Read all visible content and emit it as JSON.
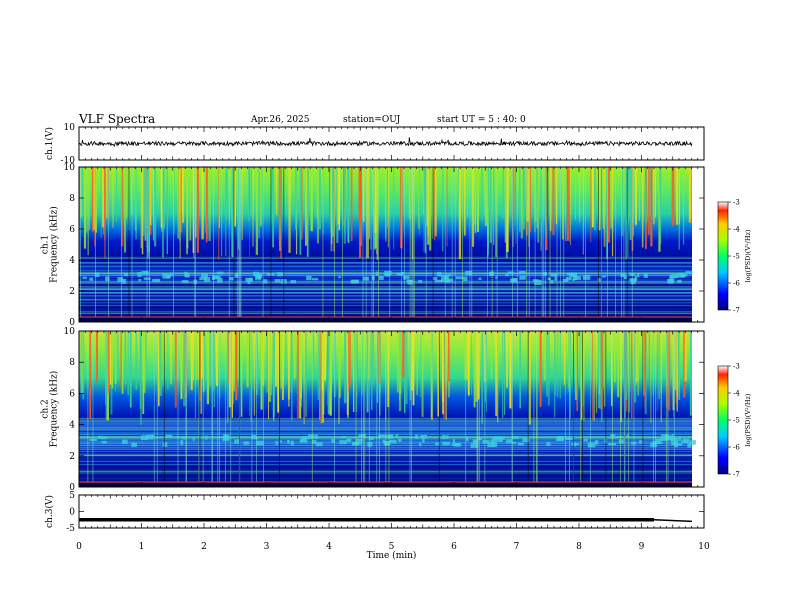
{
  "header": {
    "title": "VLF Spectra",
    "date": "Apr.26, 2025",
    "station": "station=OUJ",
    "start": "start  UT =   5 : 40: 0"
  },
  "chart_data": [
    {
      "type": "line",
      "id": "ch1-waveform",
      "ylabel": "ch.1(V)",
      "ylim": [
        -10,
        10
      ],
      "yticks": [
        "10",
        "-10"
      ],
      "xlim": [
        0,
        10
      ],
      "description_values": {
        "baseline": 0,
        "noise_amplitude": 1.2
      }
    },
    {
      "type": "heatmap",
      "id": "ch1-spectrogram",
      "ylabel": "ch.1\nFrequency (kHz)",
      "ylim": [
        0,
        10
      ],
      "yticks": [
        "0",
        "2",
        "4",
        "6",
        "8",
        "10"
      ],
      "xlim": [
        0,
        10
      ],
      "colorbar": {
        "label": "log(PSD)(V²/Hz)",
        "ticks": [
          "-3",
          "-4",
          "-5",
          "-6",
          "-7"
        ],
        "range": [
          -7,
          -3
        ]
      }
    },
    {
      "type": "heatmap",
      "id": "ch2-spectrogram",
      "ylabel": "ch.2\nFrequency (kHz)",
      "ylim": [
        0,
        10
      ],
      "yticks": [
        "0",
        "2",
        "4",
        "6",
        "8",
        "10"
      ],
      "xlim": [
        0,
        10
      ],
      "colorbar": {
        "label": "log(PSD)(V²/Hz)",
        "ticks": [
          "-3",
          "-4",
          "-5",
          "-6",
          "-7"
        ],
        "range": [
          -7,
          -3
        ]
      }
    },
    {
      "type": "line",
      "id": "ch3-waveform",
      "ylabel": "ch.3(V)",
      "ylim": [
        -5,
        5
      ],
      "yticks": [
        "5",
        "0",
        "-5"
      ],
      "xlim": [
        0,
        10
      ],
      "description_values": {
        "level": -2.5,
        "level_end": -3.0,
        "step_time": 9.2
      }
    }
  ],
  "xaxis": {
    "label": "Time (min)",
    "ticks": [
      "0",
      "1",
      "2",
      "3",
      "4",
      "5",
      "6",
      "7",
      "8",
      "9",
      "10"
    ]
  }
}
